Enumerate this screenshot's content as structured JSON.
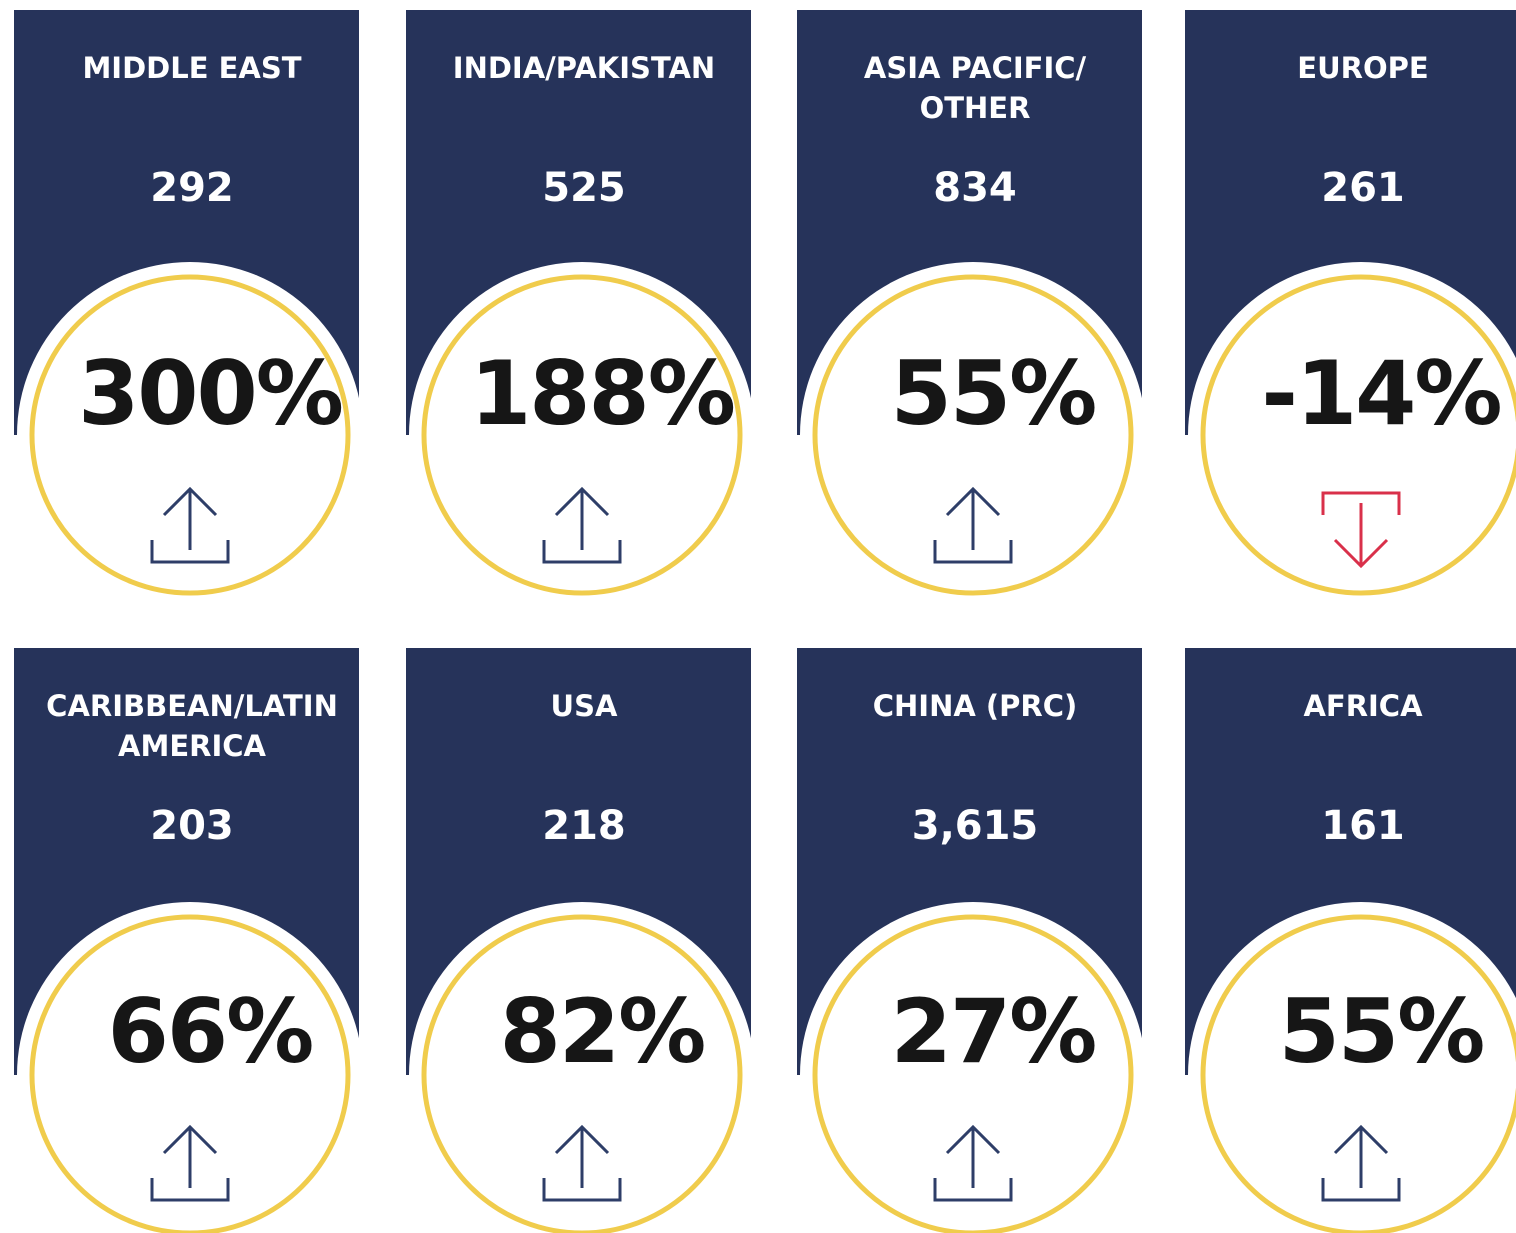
{
  "cards": [
    {
      "region": [
        "MIDDLE EAST"
      ],
      "count": "292",
      "change": "300%"
    },
    {
      "region": [
        "INDIA/PAKISTAN"
      ],
      "count": "525",
      "change": "188%"
    },
    {
      "region": [
        "ASIA PACIFIC/",
        "OTHER"
      ],
      "count": "834",
      "change": "55%"
    },
    {
      "region": [
        "EUROPE"
      ],
      "count": "261",
      "change": "-14%"
    },
    {
      "region": [
        "CARIBBEAN/LATIN",
        "AMERICA"
      ],
      "count": "203",
      "change": "66%"
    },
    {
      "region": [
        "USA"
      ],
      "count": "218",
      "change": "82%"
    },
    {
      "region": [
        "CHINA (PRC)"
      ],
      "count": "3,615",
      "change": "27%"
    },
    {
      "region": [
        "AFRICA"
      ],
      "count": "161",
      "change": "55%"
    }
  ]
}
